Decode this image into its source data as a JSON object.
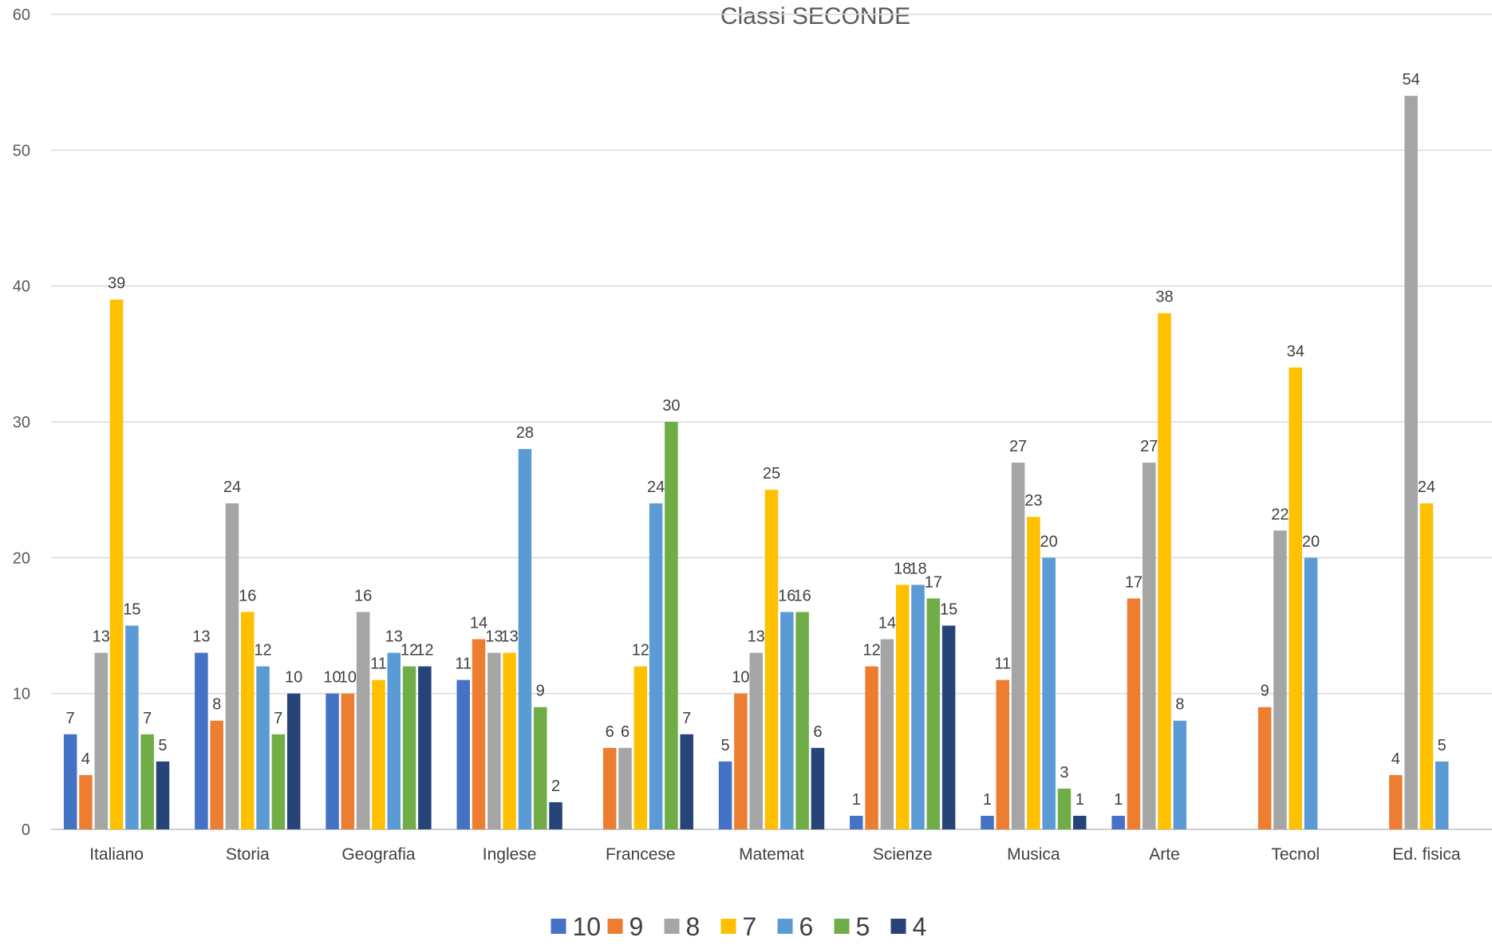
{
  "chart_data": {
    "type": "bar",
    "title": "Classi SECONDE",
    "xlabel": "",
    "ylabel": "",
    "ylim": [
      0,
      60
    ],
    "yticks": [
      0,
      10,
      20,
      30,
      40,
      50,
      60
    ],
    "grid": true,
    "legend_position": "bottom",
    "categories": [
      "Italiano",
      "Storia",
      "Geografia",
      "Inglese",
      "Francese",
      "Matemat",
      "Scienze",
      "Musica",
      "Arte",
      "Tecnol",
      "Ed. fisica"
    ],
    "series": [
      {
        "name": "10",
        "color": "#4472C4",
        "values": [
          7,
          13,
          10,
          11,
          null,
          5,
          1,
          1,
          1,
          null,
          null
        ]
      },
      {
        "name": "9",
        "color": "#ED7D31",
        "values": [
          4,
          8,
          10,
          14,
          6,
          10,
          12,
          11,
          17,
          9,
          4
        ]
      },
      {
        "name": "8",
        "color": "#A5A5A5",
        "values": [
          13,
          24,
          16,
          13,
          6,
          13,
          14,
          27,
          27,
          22,
          54
        ]
      },
      {
        "name": "7",
        "color": "#FFC000",
        "values": [
          39,
          16,
          11,
          13,
          12,
          25,
          18,
          23,
          38,
          34,
          24
        ]
      },
      {
        "name": "6",
        "color": "#5B9BD5",
        "values": [
          15,
          12,
          13,
          28,
          24,
          16,
          18,
          20,
          8,
          20,
          5
        ]
      },
      {
        "name": "5",
        "color": "#70AD47",
        "values": [
          7,
          7,
          12,
          9,
          30,
          16,
          17,
          3,
          null,
          null,
          null
        ]
      },
      {
        "name": "4",
        "color": "#264478",
        "values": [
          5,
          10,
          12,
          2,
          7,
          6,
          15,
          1,
          null,
          null,
          null
        ]
      }
    ]
  }
}
